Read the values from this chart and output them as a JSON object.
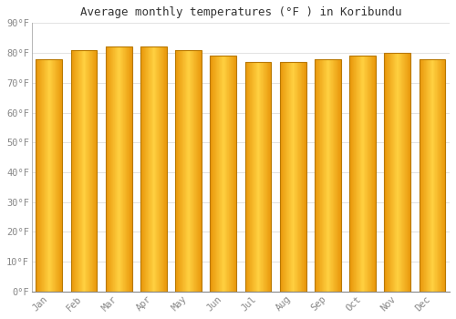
{
  "title": "Average monthly temperatures (°F ) in Koribundu",
  "months": [
    "Jan",
    "Feb",
    "Mar",
    "Apr",
    "May",
    "Jun",
    "Jul",
    "Aug",
    "Sep",
    "Oct",
    "Nov",
    "Dec"
  ],
  "values": [
    78,
    81,
    82,
    82,
    81,
    79,
    77,
    77,
    78,
    79,
    80,
    78
  ],
  "bar_color_left": "#E8960A",
  "bar_color_center": "#FFD040",
  "bar_edge_color": "#B87800",
  "background_color": "#FFFFFF",
  "grid_color": "#DDDDDD",
  "ylim": [
    0,
    90
  ],
  "yticks": [
    0,
    10,
    20,
    30,
    40,
    50,
    60,
    70,
    80,
    90
  ],
  "ytick_labels": [
    "0°F",
    "10°F",
    "20°F",
    "30°F",
    "40°F",
    "50°F",
    "60°F",
    "70°F",
    "80°F",
    "90°F"
  ],
  "title_fontsize": 9,
  "tick_fontsize": 7.5,
  "font_family": "monospace"
}
